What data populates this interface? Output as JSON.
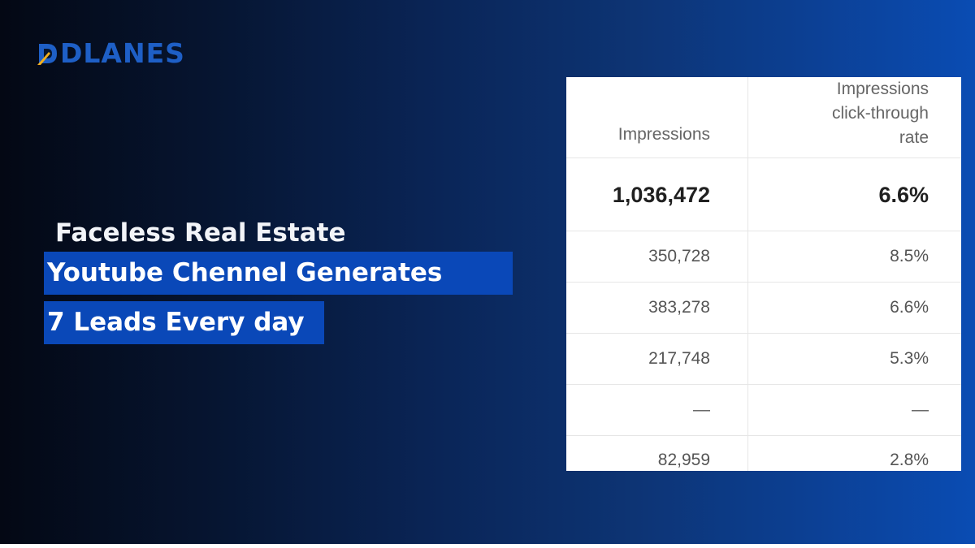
{
  "brand": {
    "name": "DLANES",
    "color": "#1e5fc6"
  },
  "headline": {
    "line1": "Faceless Real Estate",
    "line2": "Youtube Chennel Generates",
    "line3": "7 Leads Every day",
    "highlight_color": "#0a48b8"
  },
  "table": {
    "headers": {
      "col1": "Impressions",
      "col2_line1": "Impressions",
      "col2_line2": "click-through",
      "col2_line3": "rate"
    },
    "total": {
      "impressions": "1,036,472",
      "ctr": "6.6%"
    },
    "rows": [
      {
        "impressions": "350,728",
        "ctr": "8.5%"
      },
      {
        "impressions": "383,278",
        "ctr": "6.6%"
      },
      {
        "impressions": "217,748",
        "ctr": "5.3%"
      },
      {
        "impressions": "—",
        "ctr": "—"
      },
      {
        "impressions": "82,959",
        "ctr": "2.8%"
      }
    ]
  }
}
